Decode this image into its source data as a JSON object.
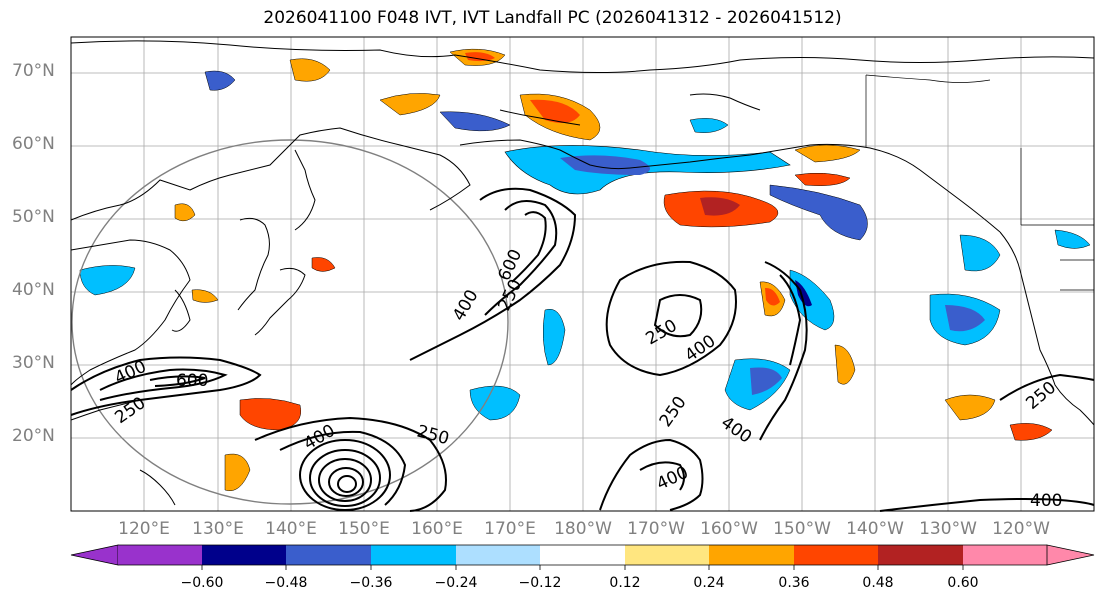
{
  "title": "2026041100 F048 IVT, IVT Landfall PC (2026041312 - 2026041512)",
  "map": {
    "lat_ticks": [
      "70°N",
      "60°N",
      "50°N",
      "40°N",
      "30°N",
      "20°N"
    ],
    "lon_ticks": [
      "120°E",
      "130°E",
      "140°E",
      "150°E",
      "160°E",
      "170°E",
      "180°W",
      "170°W",
      "160°W",
      "150°W",
      "140°W",
      "130°W",
      "120°W"
    ],
    "ivt_contour_labels": [
      "400",
      "600",
      "250",
      "400",
      "600",
      "250",
      "250",
      "400",
      "250",
      "400",
      "250",
      "400",
      "400",
      "250",
      "400"
    ],
    "ocean_color": "#ffffff",
    "coastline_color": "#000000"
  },
  "colorbar": {
    "ticks": [
      "−0.60",
      "−0.48",
      "−0.36",
      "−0.24",
      "−0.12",
      "0.12",
      "0.24",
      "0.36",
      "0.48",
      "0.60"
    ],
    "colors": [
      "#9932CC",
      "#00008B",
      "#3A5ECC",
      "#00BFFF",
      "#ADDFFF",
      "#FFFFFF",
      "#FFE680",
      "#FFA500",
      "#FF4500",
      "#B22222",
      "#FF88AA"
    ]
  }
}
